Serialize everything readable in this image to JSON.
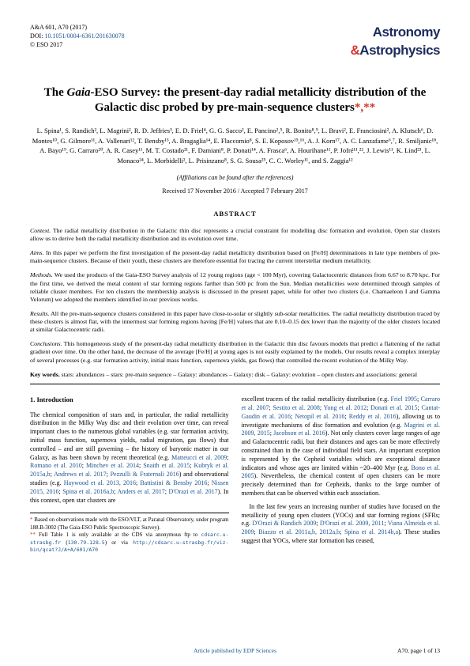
{
  "header": {
    "ref": "A&A 601, A70 (2017)",
    "doi_label": "DOI:",
    "doi": "10.1051/0004-6361/201630078",
    "copyright": "© ESO 2017",
    "journal1": "Astronomy",
    "journal_amp": "&",
    "journal2": "Astrophysics"
  },
  "title": {
    "pre": "The ",
    "gaia": "Gaia",
    "rest": "-ESO Survey: the present-day radial metallicity distribution of the Galactic disc probed by pre-main-sequence clusters"
  },
  "authors": "L. Spina¹, S. Randich², L. Magrini², R. D. Jeffries³, E. D. Friel⁴, G. G. Sacco², E. Pancino²,⁵, R. Bonito⁸,⁹, L. Bravi², E. Franciosini², A. Klutsch⁶, D. Montes¹⁰, G. Gilmore¹¹, A. Vallenari¹², T. Bensby¹³, A. Bragaglia¹⁴, E. Flaccomio⁸, S. E. Koposov¹⁵,¹⁶, A. J. Korn¹⁷, A. C. Lanzafame⁶,⁷, R. Smiljanic¹⁸, A. Bayo¹⁹, G. Carraro²⁰, A. R. Casey¹¹, M. T. Costado²¹, F. Damiani⁸, P. Donati¹⁴, A. Frasca⁶, A. Hourihane¹¹, P. Jofré¹¹,²², J. Lewis¹¹, K. Lind²³, L. Monaco²⁴, L. Morbidelli², L. Prisinzano⁸, S. G. Sousa²⁵, C. C. Worley¹¹, and S. Zaggia¹²",
  "affil_note": "(Affiliations can be found after the references)",
  "dates": "Received 17 November 2016 / Accepted 7 February 2017",
  "abstract_head": "ABSTRACT",
  "abstract": {
    "context_label": "Context.",
    "context": "The radial metallicity distribution in the Galactic thin disc represents a crucial constraint for modelling disc formation and evolution. Open star clusters allow us to derive both the radial metallicity distribution and its evolution over time.",
    "aims_label": "Aims.",
    "aims": "In this paper we perform the first investigation of the present-day radial metallicity distribution based on [Fe/H] determinations in late type members of pre-main-sequence clusters. Because of their youth, these clusters are therefore essential for tracing the current interstellar medium metallicity.",
    "methods_label": "Methods.",
    "methods": "We used the products of the Gaia-ESO Survey analysis of 12 young regions (age < 100 Myr), covering Galactocentric distances from 6.67 to 8.70 kpc. For the first time, we derived the metal content of star forming regions farther than 500 pc from the Sun. Median metallicities were determined through samples of reliable cluster members. For ten clusters the membership analysis is discussed in the present paper, while for other two clusters (i.e. Chamaeleon I and Gamma Velorum) we adopted the members identified in our previous works.",
    "results_label": "Results.",
    "results": "All the pre-main-sequence clusters considered in this paper have close-to-solar or slightly sub-solar metallicities. The radial metallicity distribution traced by these clusters is almost flat, with the innermost star forming regions having [Fe/H] values that are 0.10–0.15 dex lower than the majority of the older clusters located at similar Galactocentric radii.",
    "conclusions_label": "Conclusions.",
    "conclusions": "This homogeneous study of the present-day radial metallicity distribution in the Galactic thin disc favours models that predict a flattening of the radial gradient over time. On the other hand, the decrease of the average [Fe/H] at young ages is not easily explained by the models. Our results reveal a complex interplay of several processes (e.g. star formation activity, initial mass function, supernova yields, gas flows) that controlled the recent evolution of the Milky Way."
  },
  "keywords": {
    "label": "Key words.",
    "text": "stars: abundances – stars: pre-main sequence – Galaxy: abundances – Galaxy: disk – Galaxy: evolution – open clusters and associations: general"
  },
  "intro": {
    "head": "1. Introduction",
    "p1a": "The chemical composition of stars and, in particular, the radial metallicity distribution in the Milky Way disc and their evolution over time, can reveal important clues to the numerous global variables (e.g. star formation activity, initial mass function, supernova yields, radial migration, gas flows) that controlled – and are still governing – the history of baryonic matter in our Galaxy, as has been shown by recent theoretical (e.g. ",
    "c1": "Matteucci et al. 2009",
    "p1b": "; ",
    "c2": "Romano et al. 2010",
    "p1c": "; ",
    "c3": "Minchev et al. 2014",
    "p1d": "; ",
    "c4": "Snaith et al. 2015",
    "p1e": "; ",
    "c5": "Kubryk et al. 2015a,b",
    "p1f": "; ",
    "c6": "Andrews et al. 2017",
    "p1g": "; ",
    "c7": "Pezzulli & Fraternali 2016",
    "p1h": ") and observational studies (e.g. ",
    "c8": "Haywood et al. 2013, 2016",
    "p1i": "; ",
    "c9": "Battistini & Bensby 2016",
    "p1j": "; ",
    "c10": "Nissen 2015, 2016",
    "p1k": "; ",
    "c11": "Spina et al. 2016a,b",
    "p1l": "; ",
    "c12": "Anders et al. 2017",
    "p1m": "; ",
    "c13": "D'Orazi et al. 2017",
    "p1n": "). In this context, open star clusters are",
    "p2a": "excellent tracers of the radial metallicity distribution (e.g. ",
    "c14": "Friel 1995",
    "p2b": "; ",
    "c15": "Carraro et al. 2007",
    "p2c": "; ",
    "c16": "Sestito et al. 2008",
    "p2d": "; ",
    "c17": "Yong et al. 2012",
    "p2e": "; ",
    "c18": "Donati et al. 2015",
    "p2f": "; ",
    "c19": "Cantat-Gaudin et al. 2016",
    "p2g": "; ",
    "c20": "Netopil et al. 2016",
    "p2h": "; ",
    "c21": "Reddy et al. 2016",
    "p2i": "), allowing us to investigate mechanisms of disc formation and evolution (e.g. ",
    "c22": "Magrini et al. 2009, 2015",
    "p2j": "; ",
    "c23": "Jacobson et al. 2016",
    "p2k": "). Not only clusters cover large ranges of age and Galactocentric radii, but their distances and ages can be more effectively constrained than in the case of individual field stars. An important exception is represented by the Cepheid variables which are exceptional distance indicators and whose ages are limited within ~20–400 Myr (e.g. ",
    "c24": "Bono et al. 2005",
    "p2l": "). Nevertheless, the chemical content of open clusters can be more precisely determined than for Cepheids, thanks to the large number of members that can be observed within each association.",
    "p3a": "In the last few years an increasing number of studies have focused on the metallicity of young open clusters (YOCs) and star forming regions (SFRs; e.g. ",
    "c25": "D'Orazi & Randich 2009",
    "p3b": "; ",
    "c26": "D'Orazi et al. 2009, 2011",
    "p3c": "; ",
    "c27": "Viana Almeida et al. 2009",
    "p3d": "; ",
    "c28": "Biazzo et al. 2011a,b, 2012a,b",
    "p3e": "; ",
    "c29": "Spina et al. 2014b,a",
    "p3f": "). These studies suggest that YOCs, where star formation has ceased,"
  },
  "footnotes": {
    "f1": "Based on observations made with the ESO/VLT, at Paranal Observatory, under program 188.B-3002 (The Gaia-ESO Public Spectroscopic Survey).",
    "f2a": "Full Table 1 is only available at the CDS via anonymous ftp to ",
    "f2_link1": "cdsarc.u-strasbg.fr",
    "f2b": " (",
    "f2_link2": "130.79.128.5",
    "f2c": ") or via ",
    "f2_link3": "http://cdsarc.u-strasbg.fr/viz-bin/qcat?J/A+A/601/A70"
  },
  "footer": {
    "pub": "Article published by EDP Sciences",
    "pagenum": "A70, page 1 of 13"
  }
}
